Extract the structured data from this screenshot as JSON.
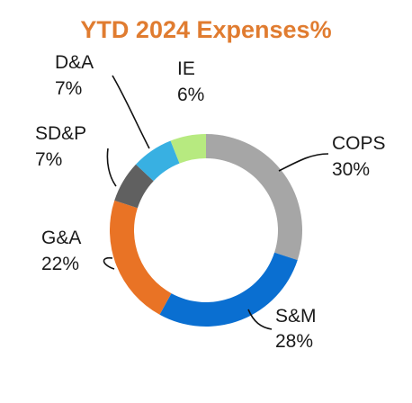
{
  "chart_data": {
    "type": "pie",
    "variant": "donut",
    "title": "YTD 2024 Expenses%",
    "categories": [
      "COPS",
      "S&M",
      "G&A",
      "SD&P",
      "D&A",
      "IE"
    ],
    "values": [
      30,
      28,
      22,
      7,
      7,
      6
    ],
    "value_labels": [
      "30%",
      "28%",
      "22%",
      "7%",
      "7%",
      "6%"
    ],
    "colors": [
      "#a6a6a6",
      "#0a6fd1",
      "#e97325",
      "#606060",
      "#38b0e2",
      "#b7ea80"
    ],
    "start": "12 o'clock, clockwise",
    "legend": "none (direct labels with leader lines)"
  }
}
